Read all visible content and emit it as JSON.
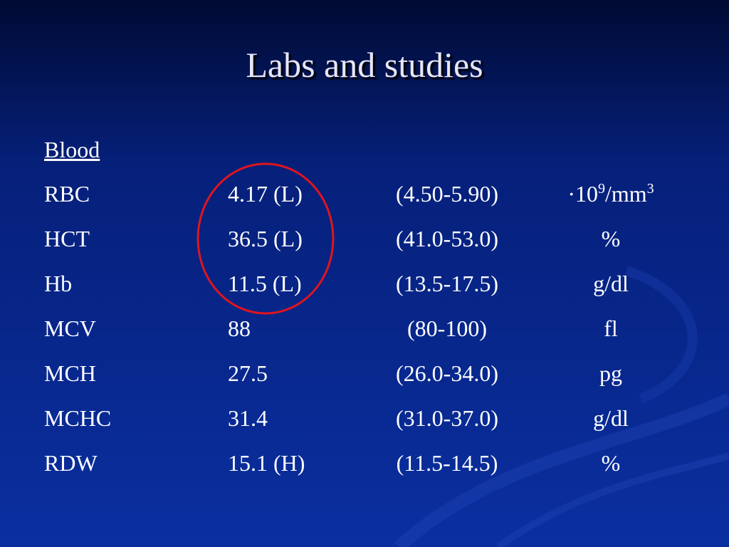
{
  "title": "Labs and studies",
  "section": "Blood",
  "rows": [
    {
      "name": "RBC",
      "value": "4.17 (L)",
      "range": "(4.50-5.90)",
      "unit": [
        {
          "text": "·10"
        },
        {
          "text": "9",
          "sup": true
        },
        {
          "text": "/mm"
        },
        {
          "text": "3",
          "sup": true
        }
      ]
    },
    {
      "name": "HCT",
      "value": "36.5 (L)",
      "range": "(41.0-53.0)",
      "unit": [
        {
          "text": "%"
        }
      ]
    },
    {
      "name": "Hb",
      "value": "11.5 (L)",
      "range": "(13.5-17.5)",
      "unit": [
        {
          "text": "g/dl"
        }
      ]
    },
    {
      "name": "MCV",
      "value": "88",
      "range": "(80-100)",
      "unit": [
        {
          "text": "fl"
        }
      ]
    },
    {
      "name": "MCH",
      "value": "27.5",
      "range": "(26.0-34.0)",
      "unit": [
        {
          "text": "pg"
        }
      ]
    },
    {
      "name": "MCHC",
      "value": "31.4",
      "range": "(31.0-37.0)",
      "unit": [
        {
          "text": "g/dl"
        }
      ]
    },
    {
      "name": "RDW",
      "value": "15.1 (H)",
      "range": "(11.5-14.5)",
      "unit": [
        {
          "text": "%"
        }
      ]
    }
  ]
}
